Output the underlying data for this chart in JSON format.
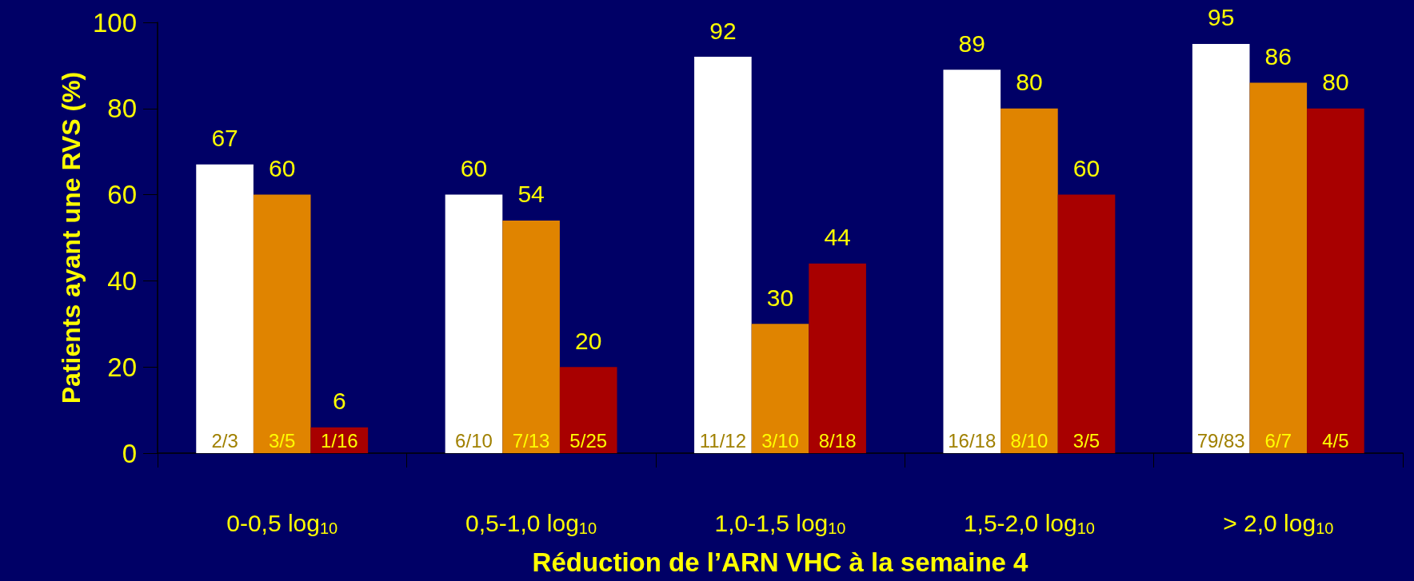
{
  "chart_data": {
    "type": "bar",
    "categories": [
      "0-0,5 log$_{10}$",
      "0,5-1,0 log$_{10}$",
      "1,0-1,5 log$_{10}$",
      "1,5-2,0 log$_{10}$",
      "> 2,0 log$_{10}$"
    ],
    "series": [
      {
        "color": "#ffffff",
        "values": [
          67,
          60,
          92,
          89,
          95
        ]
      },
      {
        "color": "#e08400",
        "values": [
          60,
          54,
          30,
          80,
          86
        ]
      },
      {
        "color": "#a80000",
        "values": [
          6,
          20,
          44,
          60,
          80
        ]
      }
    ],
    "xlabel": "Réduction de l’ARN VHC à la semaine 4",
    "ylabel": "Patients ayant une RVS (%)",
    "ylim": [
      0,
      100
    ],
    "yticks": [
      0,
      20,
      40,
      60,
      80,
      100
    ],
    "data_labels": true,
    "grid": false,
    "annotations": [
      {
        "text": "2/3",
        "x": "0-0,5 log$_{10}$",
        "y": 0
      },
      {
        "text": "3/5",
        "x": "0-0,5 log$_{10}$",
        "y": 0
      },
      {
        "text": "1/16",
        "x": "0-0,5 log$_{10}$",
        "y": 0
      },
      {
        "text": "6/10",
        "x": "0,5-1,0 log$_{10}$",
        "y": 0
      },
      {
        "text": "7/13",
        "x": "0,5-1,0 log$_{10}$",
        "y": 0
      },
      {
        "text": "5/25",
        "x": "0,5-1,0 log$_{10}$",
        "y": 0
      },
      {
        "text": "11/12",
        "x": "1,0-1,5 log$_{10}$",
        "y": 0
      },
      {
        "text": "3/10",
        "x": "1,0-1,5 log$_{10}$",
        "y": 0
      },
      {
        "text": "8/18",
        "x": "1,0-1,5 log$_{10}$",
        "y": 0
      },
      {
        "text": "16/18",
        "x": "1,5-2,0 log$_{10}$",
        "y": 0
      },
      {
        "text": "8/10",
        "x": "1,5-2,0 log$_{10}$",
        "y": 0
      },
      {
        "text": "3/5",
        "x": "1,5-2,0 log$_{10}$",
        "y": 0
      },
      {
        "text": "79/83",
        "x": "> 2,0 log$_{10}$",
        "y": 0
      },
      {
        "text": "6/7",
        "x": "> 2,0 log$_{10}$",
        "y": 0
      },
      {
        "text": "4/5",
        "x": "> 2,0 log$_{10}$",
        "y": 0
      }
    ]
  }
}
